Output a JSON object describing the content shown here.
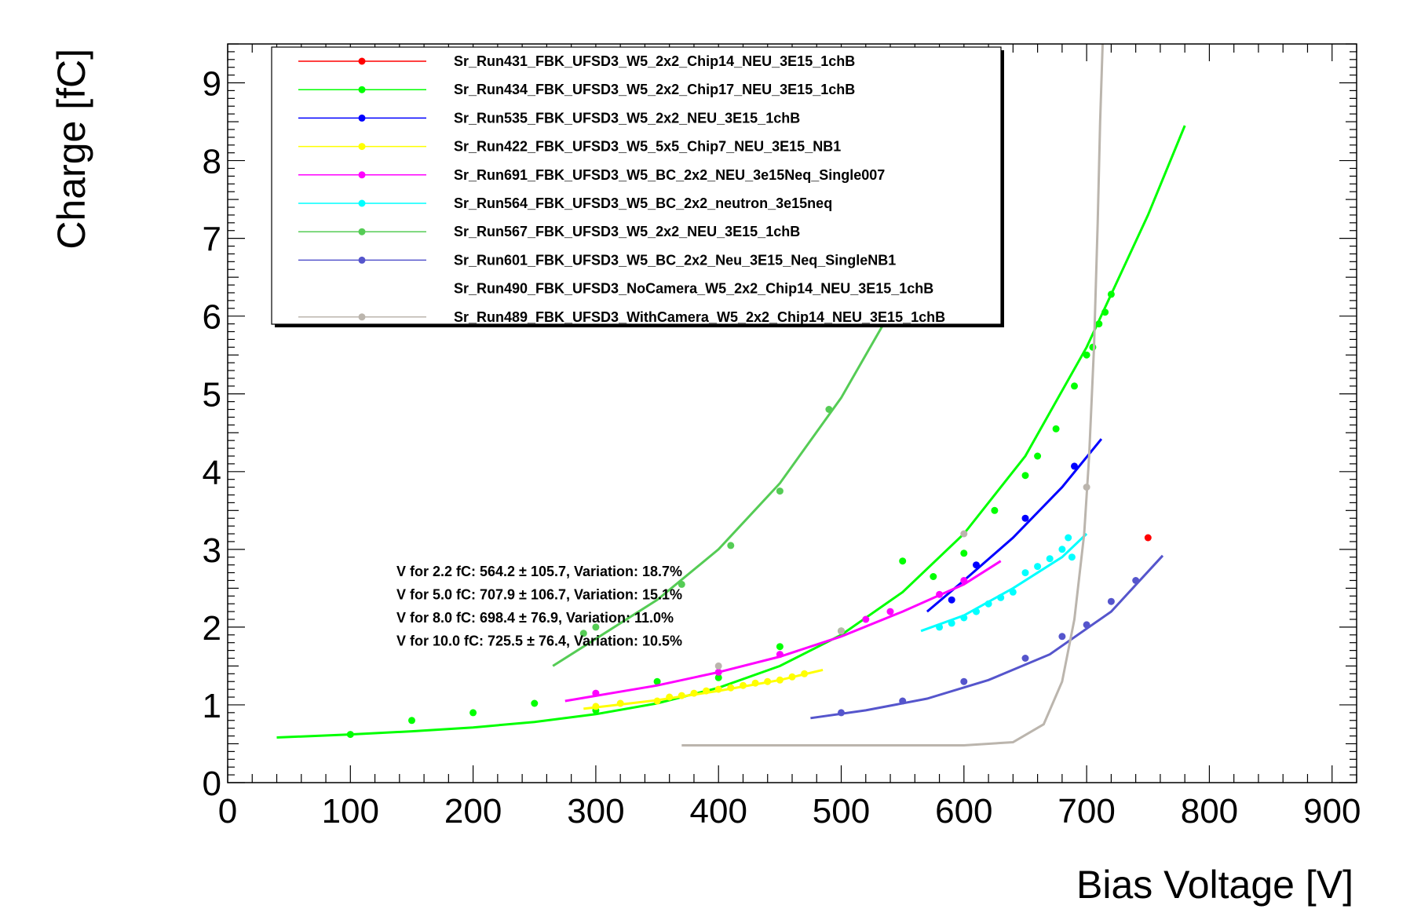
{
  "chart_data": {
    "type": "scatter",
    "xlabel": "Bias Voltage [V]",
    "ylabel": "Charge [fC]",
    "xlim": [
      0,
      920
    ],
    "ylim": [
      0,
      9.5
    ],
    "xticks": [
      0,
      100,
      200,
      300,
      400,
      500,
      600,
      700,
      800,
      900
    ],
    "yticks": [
      0,
      1,
      2,
      3,
      4,
      5,
      6,
      7,
      8,
      9
    ],
    "grid": false,
    "legend_position": "top-left",
    "series": [
      {
        "name": "Sr_Run431_FBK_UFSD3_W5_2x2_Chip14_NEU_3E15_1chB",
        "color": "#ff0000",
        "points": [
          [
            750,
            3.15
          ]
        ],
        "fit": []
      },
      {
        "name": "Sr_Run434_FBK_UFSD3_W5_2x2_Chip17_NEU_3E15_1chB",
        "color": "#00ff00",
        "points": [
          [
            100,
            0.62
          ],
          [
            150,
            0.8
          ],
          [
            200,
            0.9
          ],
          [
            250,
            1.02
          ],
          [
            300,
            0.93
          ],
          [
            350,
            1.3
          ],
          [
            400,
            1.35
          ],
          [
            450,
            1.75
          ],
          [
            500,
            1.95
          ],
          [
            550,
            2.85
          ],
          [
            575,
            2.65
          ],
          [
            600,
            2.95
          ],
          [
            625,
            3.5
          ],
          [
            650,
            3.95
          ],
          [
            660,
            4.2
          ],
          [
            675,
            4.55
          ],
          [
            690,
            5.1
          ],
          [
            700,
            5.5
          ],
          [
            705,
            5.6
          ],
          [
            710,
            5.9
          ],
          [
            715,
            6.05
          ],
          [
            720,
            6.28
          ]
        ],
        "fit": [
          [
            40,
            0.58
          ],
          [
            100,
            0.62
          ],
          [
            150,
            0.66
          ],
          [
            200,
            0.71
          ],
          [
            250,
            0.78
          ],
          [
            300,
            0.88
          ],
          [
            350,
            1.02
          ],
          [
            400,
            1.22
          ],
          [
            450,
            1.5
          ],
          [
            500,
            1.9
          ],
          [
            550,
            2.45
          ],
          [
            600,
            3.2
          ],
          [
            650,
            4.2
          ],
          [
            700,
            5.6
          ],
          [
            750,
            7.3
          ],
          [
            780,
            8.45
          ]
        ]
      },
      {
        "name": "Sr_Run535_FBK_UFSD3_W5_2x2_NEU_3E15_1chB",
        "color": "#0000ff",
        "points": [
          [
            590,
            2.35
          ],
          [
            610,
            2.8
          ],
          [
            650,
            3.4
          ],
          [
            690,
            4.07
          ]
        ],
        "fit": [
          [
            570,
            2.2
          ],
          [
            600,
            2.6
          ],
          [
            640,
            3.15
          ],
          [
            680,
            3.8
          ],
          [
            712,
            4.42
          ]
        ]
      },
      {
        "name": "Sr_Run422_FBK_UFSD3_W5_5x5_Chip7_NEU_3E15_NB1",
        "color": "#ffff00",
        "points": [
          [
            300,
            0.98
          ],
          [
            320,
            1.02
          ],
          [
            350,
            1.05
          ],
          [
            360,
            1.1
          ],
          [
            370,
            1.12
          ],
          [
            380,
            1.15
          ],
          [
            390,
            1.18
          ],
          [
            400,
            1.2
          ],
          [
            410,
            1.22
          ],
          [
            420,
            1.25
          ],
          [
            430,
            1.28
          ],
          [
            440,
            1.3
          ],
          [
            450,
            1.32
          ],
          [
            460,
            1.36
          ],
          [
            470,
            1.4
          ]
        ],
        "fit": [
          [
            290,
            0.95
          ],
          [
            350,
            1.06
          ],
          [
            400,
            1.18
          ],
          [
            450,
            1.32
          ],
          [
            485,
            1.45
          ]
        ]
      },
      {
        "name": "Sr_Run691_FBK_UFSD3_W5_BC_2x2_NEU_3e15Neq_Single007",
        "color": "#ff00ff",
        "points": [
          [
            300,
            1.15
          ],
          [
            400,
            1.42
          ],
          [
            450,
            1.65
          ],
          [
            520,
            2.1
          ],
          [
            540,
            2.2
          ],
          [
            580,
            2.42
          ],
          [
            600,
            2.6
          ]
        ],
        "fit": [
          [
            275,
            1.05
          ],
          [
            350,
            1.25
          ],
          [
            400,
            1.42
          ],
          [
            450,
            1.62
          ],
          [
            500,
            1.88
          ],
          [
            550,
            2.2
          ],
          [
            600,
            2.55
          ],
          [
            630,
            2.85
          ]
        ]
      },
      {
        "name": "Sr_Run564_FBK_UFSD3_W5_BC_2x2_neutron_3e15neq",
        "color": "#00ffff",
        "points": [
          [
            580,
            2.0
          ],
          [
            590,
            2.05
          ],
          [
            600,
            2.12
          ],
          [
            610,
            2.2
          ],
          [
            620,
            2.3
          ],
          [
            630,
            2.38
          ],
          [
            640,
            2.45
          ],
          [
            650,
            2.7
          ],
          [
            660,
            2.78
          ],
          [
            670,
            2.88
          ],
          [
            680,
            3.0
          ],
          [
            685,
            3.15
          ],
          [
            688,
            2.9
          ]
        ],
        "fit": [
          [
            565,
            1.95
          ],
          [
            600,
            2.15
          ],
          [
            640,
            2.5
          ],
          [
            680,
            2.9
          ],
          [
            700,
            3.2
          ]
        ]
      },
      {
        "name": "Sr_Run567_FBK_UFSD3_W5_2x2_NEU_3E15_1chB",
        "color": "#55cc55",
        "points": [
          [
            290,
            1.92
          ],
          [
            300,
            2.0
          ],
          [
            370,
            2.55
          ],
          [
            410,
            3.05
          ],
          [
            450,
            3.75
          ],
          [
            490,
            4.8
          ],
          [
            550,
            6.5
          ]
        ],
        "fit": [
          [
            265,
            1.5
          ],
          [
            300,
            1.85
          ],
          [
            350,
            2.35
          ],
          [
            400,
            3.0
          ],
          [
            450,
            3.85
          ],
          [
            500,
            4.95
          ],
          [
            540,
            6.05
          ],
          [
            560,
            6.6
          ]
        ]
      },
      {
        "name": "Sr_Run601_FBK_UFSD3_W5_BC_2x2_Neu_3E15_Neq_SingleNB1",
        "color": "#5555cc",
        "points": [
          [
            500,
            0.9
          ],
          [
            550,
            1.05
          ],
          [
            600,
            1.3
          ],
          [
            650,
            1.6
          ],
          [
            680,
            1.88
          ],
          [
            700,
            2.03
          ],
          [
            720,
            2.33
          ],
          [
            740,
            2.6
          ]
        ],
        "fit": [
          [
            475,
            0.83
          ],
          [
            520,
            0.93
          ],
          [
            570,
            1.08
          ],
          [
            620,
            1.32
          ],
          [
            670,
            1.65
          ],
          [
            720,
            2.2
          ],
          [
            762,
            2.92
          ]
        ]
      },
      {
        "name": "Sr_Run490_FBK_UFSD3_NoCamera_W5_2x2_Chip14_NEU_3E15_1chB",
        "color": "#ffffff",
        "points": [],
        "fit": []
      },
      {
        "name": "Sr_Run489_FBK_UFSD3_WithCamera_W5_2x2_Chip14_NEU_3E15_1chB",
        "color": "#bbb5ad",
        "points": [
          [
            400,
            1.5
          ],
          [
            500,
            1.95
          ],
          [
            600,
            3.2
          ],
          [
            700,
            3.8
          ]
        ],
        "fit": [
          [
            370,
            0.48
          ],
          [
            500,
            0.48
          ],
          [
            600,
            0.48
          ],
          [
            640,
            0.52
          ],
          [
            665,
            0.75
          ],
          [
            680,
            1.3
          ],
          [
            690,
            2.1
          ],
          [
            698,
            3.2
          ],
          [
            702,
            4.2
          ],
          [
            706,
            5.6
          ],
          [
            709,
            7.2
          ],
          [
            711,
            8.5
          ],
          [
            713,
            9.5
          ]
        ]
      }
    ],
    "annotations": [
      "V for 2.2 fC: 564.2 ± 105.7, Variation: 18.7%",
      "V for 5.0 fC: 707.9 ± 106.7, Variation: 15.1%",
      "V for 8.0 fC: 698.4 ± 76.9, Variation: 11.0%",
      "V for 10.0 fC: 725.5 ± 76.4, Variation: 10.5%"
    ]
  }
}
